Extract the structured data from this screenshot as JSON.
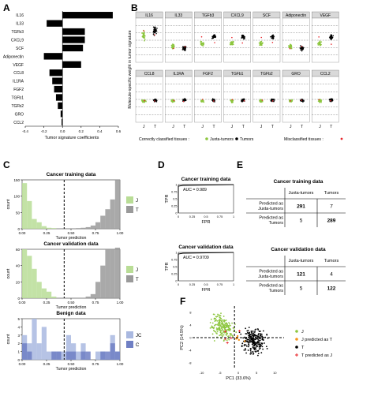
{
  "panel_labels": {
    "a": "A",
    "b": "B",
    "c": "C",
    "d": "D",
    "e": "E",
    "f": "F"
  },
  "chart_data": [
    {
      "id": "A",
      "type": "bar",
      "orientation": "horizontal",
      "xlabel": "Tumor signature coefficients",
      "xlim": [
        -0.4,
        0.6
      ],
      "xticks": [
        "-0.4",
        "-0.2",
        "0.0",
        "0.2",
        "0.4",
        "0.6"
      ],
      "categories": [
        "IL16",
        "IL33",
        "TGFb3",
        "CXCL9",
        "SCF",
        "Adiponectin",
        "VEGF",
        "CCL8",
        "IL1RA",
        "FGF2",
        "TGFb1",
        "TGFb2",
        "GRO",
        "CCL2"
      ],
      "values": [
        0.54,
        -0.17,
        0.24,
        0.24,
        0.22,
        -0.2,
        0.2,
        -0.14,
        -0.11,
        -0.09,
        -0.07,
        -0.05,
        -0.02,
        -0.01
      ]
    },
    {
      "id": "B",
      "type": "scatter",
      "ylabel": "Molecule-specific weight in tumor signature",
      "xticks": [
        "J",
        "T"
      ],
      "panels": [
        "IL16",
        "IL33",
        "TGFb3",
        "CXCL9",
        "SCF",
        "Adiponectin",
        "VEGF",
        "CCL8",
        "IL1RA",
        "FGF2",
        "TGFb1",
        "TGFb2",
        "GRO",
        "CCL2"
      ],
      "legend": {
        "correct": "Correctly classified tissues :",
        "juxta": "Juxta-tumors",
        "tumors": "Tumors",
        "misclassified": "Misclassified tissues :"
      },
      "colors": {
        "juxta": "#8dc63f",
        "tumor": "#000000",
        "mis": "#e8262b"
      }
    },
    {
      "id": "C",
      "type": "bar",
      "subtype": "histogram",
      "charts": [
        {
          "title": "Cancer training data",
          "ylabel": "count",
          "xlabel": "Tumor prediction",
          "yticks": [
            "0",
            "50",
            "100",
            "150"
          ],
          "ymax": 150,
          "series": [
            {
              "name": "J",
              "values": [
                140,
                85,
                30,
                20,
                8,
                3,
                2,
                0,
                0,
                0,
                0,
                0,
                0,
                0,
                0,
                0,
                0,
                0,
                0,
                0
              ]
            },
            {
              "name": "T",
              "values": [
                0,
                0,
                0,
                0,
                0,
                0,
                0,
                0,
                0,
                0,
                0,
                2,
                3,
                5,
                10,
                20,
                40,
                60,
                90,
                150
              ]
            }
          ]
        },
        {
          "title": "Cancer validation data",
          "ylabel": "count",
          "xlabel": "Tumor prediction",
          "yticks": [
            "0",
            "20",
            "40",
            "60"
          ],
          "ymax": 60,
          "series": [
            {
              "name": "J",
              "values": [
                60,
                52,
                36,
                20,
                12,
                8,
                2,
                0,
                0,
                0,
                0,
                0,
                0,
                0,
                0,
                0,
                0,
                0,
                0,
                0
              ]
            },
            {
              "name": "T",
              "values": [
                0,
                0,
                0,
                0,
                0,
                0,
                0,
                0,
                0,
                0,
                0,
                0,
                0,
                2,
                5,
                20,
                40,
                60,
                60,
                62
              ]
            }
          ]
        },
        {
          "title": "Benign data",
          "ylabel": "count",
          "xlabel": "Tumor prediction",
          "yticks": [
            "0",
            "1",
            "2",
            "3",
            "4",
            "5"
          ],
          "ymax": 5,
          "series": [
            {
              "name": "JC",
              "values": [
                3,
                2,
                5,
                2,
                4,
                1,
                1,
                1,
                1,
                3,
                2,
                1,
                2,
                0,
                0,
                1,
                1,
                0,
                3,
                1
              ]
            },
            {
              "name": "C",
              "values": [
                2,
                1,
                0,
                0,
                0,
                0,
                1,
                1,
                0,
                1,
                1,
                0,
                1,
                1,
                0,
                0,
                1,
                1,
                2,
                1
              ]
            }
          ]
        }
      ],
      "xticks": [
        "0.00",
        "0.25",
        "0.50",
        "0.75",
        "1.00"
      ],
      "cutoff": 0.43,
      "colors": {
        "J": "#b9dd96",
        "T": "#9a9a9a",
        "JC": "#a9b8e0",
        "C": "#6f7fc4"
      }
    },
    {
      "id": "D",
      "type": "line",
      "charts": [
        {
          "title": "Cancer training data",
          "auc": "AUC = 0.989"
        },
        {
          "title": "Cancer validation data",
          "auc": "AUC = 0.9709"
        }
      ],
      "xlabel": "FPR",
      "ylabel": "TPR",
      "xticks": [
        "0",
        "0.25",
        "0.5",
        "0.75",
        "1"
      ],
      "yticks": [
        "0",
        "0.25",
        "0.5",
        "0.75",
        "1"
      ]
    },
    {
      "id": "E",
      "type": "table",
      "tables": [
        {
          "title": "Cancer training data",
          "columns": [
            "Juxta-tumors",
            "Tumors"
          ],
          "rows": [
            {
              "label": "Predicted as Juxta-tumors",
              "cells": [
                "291",
                "7"
              ]
            },
            {
              "label": "Predicted as Tumors",
              "cells": [
                "5",
                "289"
              ]
            }
          ]
        },
        {
          "title": "Cancer validation data",
          "columns": [
            "Juxta-tumors",
            "Tumors"
          ],
          "rows": [
            {
              "label": "Predicted as Juxta-tumors",
              "cells": [
                "121",
                "4"
              ]
            },
            {
              "label": "Predicted as Tumors",
              "cells": [
                "5",
                "122"
              ]
            }
          ]
        }
      ]
    },
    {
      "id": "F",
      "type": "scatter",
      "xlabel": "PC1 (33.6%)",
      "ylabel": "PC2 (14.5%)",
      "xticks": [
        "-10",
        "-5",
        "0",
        "5",
        "10"
      ],
      "yticks": [
        "-8",
        "-4",
        "0",
        "4",
        "8"
      ],
      "xlim": [
        -11,
        13
      ],
      "ylim": [
        -9,
        9
      ],
      "legend": [
        "J",
        "J predicted as T",
        "T",
        "T predicted as J"
      ],
      "colors": {
        "J": "#8dc63f",
        "JT": "#f7941d",
        "T": "#000000",
        "TJ": "#e8262b"
      }
    }
  ]
}
